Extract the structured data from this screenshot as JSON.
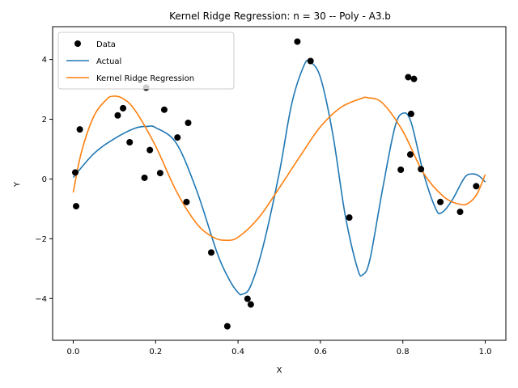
{
  "chart_data": {
    "type": "scatter",
    "title": "Kernel Ridge Regression: n = 30 -- Poly - A3.b",
    "xlabel": "X",
    "ylabel": "Y",
    "xlim": [
      -0.05,
      1.05
    ],
    "ylim": [
      -5.4,
      5.1
    ],
    "xticks": [
      0.0,
      0.2,
      0.4,
      0.6,
      0.8,
      1.0
    ],
    "xtick_labels": [
      "0.0",
      "0.2",
      "0.4",
      "0.6",
      "0.8",
      "1.0"
    ],
    "yticks": [
      -4,
      -2,
      0,
      2,
      4
    ],
    "ytick_labels": [
      "−4",
      "−2",
      "0",
      "2",
      "4"
    ],
    "legend_position": "upper-left",
    "series": [
      {
        "name": "Data",
        "kind": "points",
        "color": "#000000",
        "points": [
          [
            0.005,
            0.22
          ],
          [
            0.007,
            -0.91
          ],
          [
            0.016,
            1.66
          ],
          [
            0.108,
            2.13
          ],
          [
            0.121,
            2.37
          ],
          [
            0.137,
            1.23
          ],
          [
            0.173,
            0.04
          ],
          [
            0.177,
            3.06
          ],
          [
            0.186,
            0.97
          ],
          [
            0.211,
            0.2
          ],
          [
            0.221,
            2.32
          ],
          [
            0.253,
            1.39
          ],
          [
            0.275,
            -0.77
          ],
          [
            0.279,
            1.88
          ],
          [
            0.335,
            -2.46
          ],
          [
            0.374,
            -4.93
          ],
          [
            0.423,
            -4.01
          ],
          [
            0.431,
            -4.2
          ],
          [
            0.544,
            4.6
          ],
          [
            0.576,
            3.95
          ],
          [
            0.67,
            -1.29
          ],
          [
            0.795,
            0.31
          ],
          [
            0.813,
            3.41
          ],
          [
            0.818,
            0.82
          ],
          [
            0.82,
            2.18
          ],
          [
            0.827,
            3.35
          ],
          [
            0.844,
            0.33
          ],
          [
            0.891,
            -0.77
          ],
          [
            0.939,
            -1.1
          ],
          [
            0.978,
            -0.24
          ]
        ]
      },
      {
        "name": "Actual",
        "kind": "line",
        "color": "#1f77b4",
        "points": [
          [
            0.0,
            0.05
          ],
          [
            0.05,
            0.85
          ],
          [
            0.1,
            1.35
          ],
          [
            0.15,
            1.7
          ],
          [
            0.18,
            1.76
          ],
          [
            0.2,
            1.72
          ],
          [
            0.25,
            1.2
          ],
          [
            0.3,
            -0.4
          ],
          [
            0.35,
            -2.5
          ],
          [
            0.38,
            -3.4
          ],
          [
            0.4,
            -3.8
          ],
          [
            0.41,
            -3.86
          ],
          [
            0.43,
            -3.6
          ],
          [
            0.46,
            -2.3
          ],
          [
            0.5,
            0.2
          ],
          [
            0.53,
            2.5
          ],
          [
            0.56,
            3.8
          ],
          [
            0.575,
            3.92
          ],
          [
            0.6,
            3.4
          ],
          [
            0.63,
            1.5
          ],
          [
            0.66,
            -1.2
          ],
          [
            0.69,
            -3.0
          ],
          [
            0.703,
            -3.2
          ],
          [
            0.72,
            -2.7
          ],
          [
            0.75,
            -0.4
          ],
          [
            0.78,
            1.7
          ],
          [
            0.8,
            2.2
          ],
          [
            0.82,
            1.9
          ],
          [
            0.85,
            0.2
          ],
          [
            0.88,
            -1.0
          ],
          [
            0.895,
            -1.12
          ],
          [
            0.92,
            -0.7
          ],
          [
            0.95,
            0.05
          ],
          [
            0.97,
            0.17
          ],
          [
            0.985,
            0.1
          ],
          [
            1.0,
            -0.1
          ]
        ]
      },
      {
        "name": "Kernel Ridge Regression",
        "kind": "line",
        "color": "#ff7f0e",
        "points": [
          [
            0.0,
            -0.45
          ],
          [
            0.02,
            0.9
          ],
          [
            0.05,
            2.1
          ],
          [
            0.08,
            2.65
          ],
          [
            0.095,
            2.77
          ],
          [
            0.12,
            2.7
          ],
          [
            0.15,
            2.3
          ],
          [
            0.2,
            1.1
          ],
          [
            0.25,
            -0.4
          ],
          [
            0.3,
            -1.5
          ],
          [
            0.34,
            -1.95
          ],
          [
            0.37,
            -2.05
          ],
          [
            0.4,
            -1.95
          ],
          [
            0.45,
            -1.3
          ],
          [
            0.5,
            -0.3
          ],
          [
            0.55,
            0.75
          ],
          [
            0.6,
            1.75
          ],
          [
            0.65,
            2.4
          ],
          [
            0.7,
            2.7
          ],
          [
            0.715,
            2.72
          ],
          [
            0.75,
            2.55
          ],
          [
            0.8,
            1.6
          ],
          [
            0.85,
            0.2
          ],
          [
            0.9,
            -0.6
          ],
          [
            0.94,
            -0.85
          ],
          [
            0.96,
            -0.8
          ],
          [
            0.98,
            -0.5
          ],
          [
            1.0,
            0.15
          ]
        ]
      }
    ]
  }
}
